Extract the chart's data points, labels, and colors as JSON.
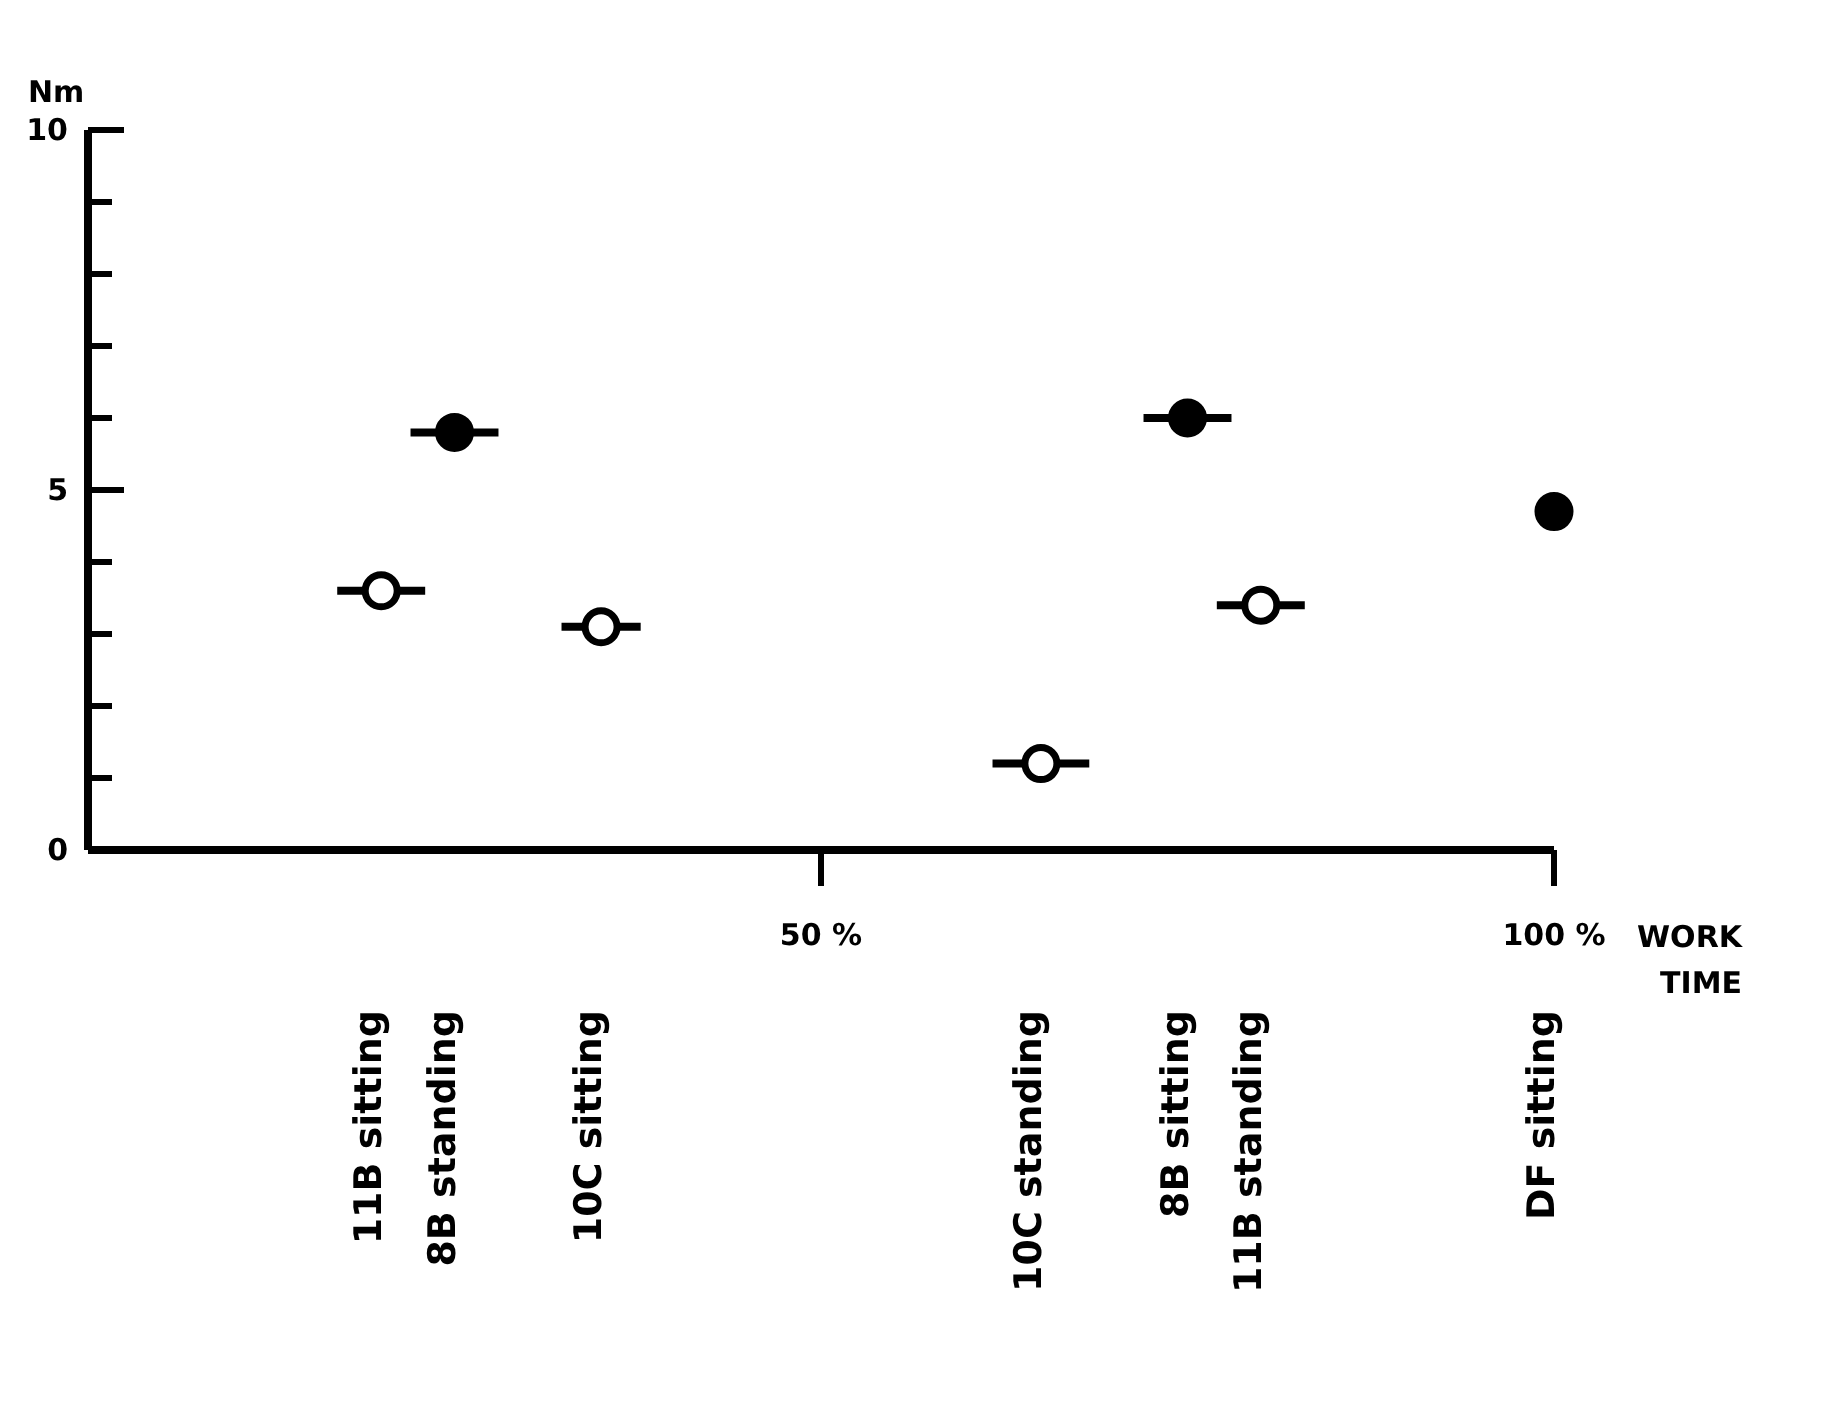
{
  "chart_data": {
    "type": "scatter",
    "ylabel": "Nm",
    "xlabel": "WORK TIME",
    "annotations": [
      "11B sitting",
      "8B standing",
      "10C sitting",
      "10C standing",
      "8B sitting",
      "11B standing",
      "DF sitting"
    ],
    "xlim": [
      0,
      100
    ],
    "xticks": [
      {
        "value": 50,
        "label": "50 %"
      },
      {
        "value": 100,
        "label": "100 %"
      }
    ],
    "ylim": [
      0,
      10
    ],
    "yticks": [
      0,
      {
        "value": 1,
        "label": null
      },
      {
        "value": 2,
        "label": null
      },
      {
        "value": 3,
        "label": null
      },
      {
        "value": 4,
        "label": null
      },
      5,
      {
        "value": 6,
        "label": null
      },
      {
        "value": 7,
        "label": null
      },
      {
        "value": 8,
        "label": null
      },
      {
        "value": 9,
        "label": null
      },
      10
    ],
    "marker": "circle",
    "series": [
      {
        "color": "#ffffff",
        "x": [
          20,
          35,
          65,
          80
        ],
        "values": [
          3.6,
          3.1,
          1.2,
          3.4
        ],
        "xerrors": [
          3,
          2.7,
          3.3,
          3
        ]
      },
      {
        "color": "#000000",
        "x": [
          25,
          75,
          100
        ],
        "values": [
          5.8,
          6.0,
          4.7
        ],
        "xerrors": [
          3,
          3,
          null
        ]
      }
    ]
  }
}
